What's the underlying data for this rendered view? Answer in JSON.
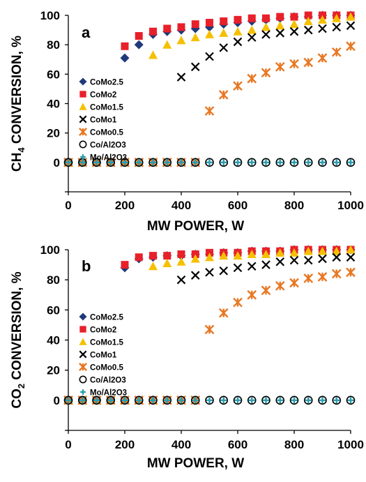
{
  "chart_data": [
    {
      "type": "scatter",
      "panel_label": "a",
      "xlabel": "MW POWER, W",
      "ylabel_parts": [
        "CH",
        "4",
        " CONVERSION, %"
      ],
      "xlim": [
        0,
        1000
      ],
      "ylim": [
        -20,
        100
      ],
      "xticks": [
        0,
        200,
        400,
        600,
        800,
        1000
      ],
      "yticks": [
        0,
        20,
        40,
        60,
        80,
        100
      ],
      "legend_position": "middle-left",
      "series": [
        {
          "name": "CoMo2.5",
          "marker": "diamond",
          "color": "#1f3a7a",
          "x": [
            0,
            50,
            100,
            150,
            200,
            250,
            300,
            350,
            400,
            450,
            500,
            550,
            600,
            650,
            700,
            750,
            800,
            850,
            900,
            950,
            1000
          ],
          "y": [
            0,
            0,
            0,
            0,
            71,
            80,
            87,
            89,
            90,
            91,
            92,
            94,
            95,
            96,
            97,
            98,
            99,
            99,
            100,
            100,
            100
          ]
        },
        {
          "name": "CoMo2",
          "marker": "square",
          "color": "#e8202a",
          "x": [
            200,
            250,
            300,
            350,
            400,
            450,
            500,
            550,
            600,
            650,
            700,
            750,
            800,
            850,
            900,
            950,
            1000
          ],
          "y": [
            79,
            86,
            89,
            91,
            92,
            94,
            95,
            96,
            97,
            98,
            98,
            99,
            99,
            100,
            100,
            100,
            100
          ]
        },
        {
          "name": "CoMo1.5",
          "marker": "triangle",
          "color": "#f5c000",
          "x": [
            0,
            50,
            100,
            150,
            200,
            250,
            300,
            350,
            400,
            450,
            500,
            550,
            600,
            650,
            700,
            750,
            800,
            850,
            900,
            950,
            1000
          ],
          "y": [
            0,
            0,
            0,
            0,
            0,
            0,
            73,
            80,
            83,
            85,
            87,
            88,
            89,
            90,
            92,
            93,
            94,
            96,
            97,
            98,
            99
          ]
        },
        {
          "name": "CoMo1",
          "marker": "x",
          "color": "#000000",
          "x": [
            0,
            50,
            100,
            150,
            200,
            250,
            300,
            350,
            400,
            450,
            500,
            550,
            600,
            650,
            700,
            750,
            800,
            850,
            900,
            950,
            1000
          ],
          "y": [
            0,
            0,
            0,
            0,
            0,
            0,
            0,
            0,
            58,
            65,
            72,
            78,
            82,
            85,
            87,
            88,
            89,
            90,
            91,
            92,
            93
          ]
        },
        {
          "name": "CoMo0.5",
          "marker": "asterisk",
          "color": "#e87722",
          "x": [
            0,
            50,
            100,
            150,
            200,
            250,
            300,
            350,
            400,
            450,
            500,
            550,
            600,
            650,
            700,
            750,
            800,
            850,
            900,
            950,
            1000
          ],
          "y": [
            0,
            0,
            0,
            0,
            0,
            0,
            0,
            0,
            0,
            0,
            35,
            46,
            52,
            57,
            61,
            65,
            67,
            68,
            71,
            75,
            79
          ]
        },
        {
          "name": "Co/Al2O3",
          "marker": "circle",
          "color": "#000000",
          "x": [
            0,
            50,
            100,
            150,
            200,
            250,
            300,
            350,
            400,
            450,
            500,
            550,
            600,
            650,
            700,
            750,
            800,
            850,
            900,
            950,
            1000
          ],
          "y": [
            0,
            0,
            0,
            0,
            0,
            0,
            0,
            0,
            0,
            0,
            0,
            0,
            0,
            0,
            0,
            0,
            0,
            0,
            0,
            0,
            0
          ]
        },
        {
          "name": "Mo/Al2O3",
          "marker": "plus",
          "color": "#2a9db0",
          "x": [
            0,
            50,
            100,
            150,
            200,
            250,
            300,
            350,
            400,
            450,
            500,
            550,
            600,
            650,
            700,
            750,
            800,
            850,
            900,
            950,
            1000
          ],
          "y": [
            0,
            0,
            0,
            0,
            0,
            0,
            0,
            0,
            0,
            0,
            0,
            0,
            0,
            0,
            0,
            0,
            0,
            0,
            0,
            0,
            0
          ]
        }
      ]
    },
    {
      "type": "scatter",
      "panel_label": "b",
      "xlabel": "MW POWER, W",
      "ylabel_parts": [
        "CO",
        "2",
        " CONVERSION, %"
      ],
      "xlim": [
        0,
        1000
      ],
      "ylim": [
        -20,
        100
      ],
      "xticks": [
        0,
        200,
        400,
        600,
        800,
        1000
      ],
      "yticks": [
        0,
        20,
        40,
        60,
        80,
        100
      ],
      "legend_position": "middle-left",
      "series": [
        {
          "name": "CoMo2.5",
          "marker": "diamond",
          "color": "#1f3a7a",
          "x": [
            0,
            50,
            100,
            150,
            200,
            250,
            300,
            350,
            400,
            450,
            500,
            550,
            600,
            650,
            700,
            750,
            800,
            850,
            900,
            950,
            1000
          ],
          "y": [
            0,
            0,
            0,
            0,
            88,
            94,
            95,
            96,
            96,
            97,
            97,
            98,
            98,
            99,
            99,
            99,
            100,
            100,
            100,
            100,
            100
          ]
        },
        {
          "name": "CoMo2",
          "marker": "square",
          "color": "#e8202a",
          "x": [
            200,
            250,
            300,
            350,
            400,
            450,
            500,
            550,
            600,
            650,
            700,
            750,
            800,
            850,
            900,
            950,
            1000
          ],
          "y": [
            90,
            95,
            96,
            96,
            97,
            97,
            98,
            98,
            98,
            99,
            99,
            99,
            100,
            100,
            100,
            100,
            100
          ]
        },
        {
          "name": "CoMo1.5",
          "marker": "triangle",
          "color": "#f5c000",
          "x": [
            0,
            50,
            100,
            150,
            200,
            250,
            300,
            350,
            400,
            450,
            500,
            550,
            600,
            650,
            700,
            750,
            800,
            850,
            900,
            950,
            1000
          ],
          "y": [
            0,
            0,
            0,
            0,
            0,
            0,
            89,
            91,
            92,
            94,
            95,
            96,
            96,
            97,
            97,
            98,
            98,
            99,
            99,
            99,
            100
          ]
        },
        {
          "name": "CoMo1",
          "marker": "x",
          "color": "#000000",
          "x": [
            0,
            50,
            100,
            150,
            200,
            250,
            300,
            350,
            400,
            450,
            500,
            550,
            600,
            650,
            700,
            750,
            800,
            850,
            900,
            950,
            1000
          ],
          "y": [
            0,
            0,
            0,
            0,
            0,
            0,
            0,
            0,
            80,
            83,
            85,
            86,
            88,
            89,
            90,
            92,
            93,
            93,
            94,
            95,
            95
          ]
        },
        {
          "name": "CoMo0.5",
          "marker": "asterisk",
          "color": "#e87722",
          "x": [
            0,
            50,
            100,
            150,
            200,
            250,
            300,
            350,
            400,
            450,
            500,
            550,
            600,
            650,
            700,
            750,
            800,
            850,
            900,
            950,
            1000
          ],
          "y": [
            0,
            0,
            0,
            0,
            0,
            0,
            0,
            0,
            0,
            0,
            47,
            58,
            65,
            70,
            73,
            76,
            78,
            81,
            82,
            84,
            85
          ]
        },
        {
          "name": "Co/Al2O3",
          "marker": "circle",
          "color": "#000000",
          "x": [
            0,
            50,
            100,
            150,
            200,
            250,
            300,
            350,
            400,
            450,
            500,
            550,
            600,
            650,
            700,
            750,
            800,
            850,
            900,
            950,
            1000
          ],
          "y": [
            0,
            0,
            0,
            0,
            0,
            0,
            0,
            0,
            0,
            0,
            0,
            0,
            0,
            0,
            0,
            0,
            0,
            0,
            0,
            0,
            0
          ]
        },
        {
          "name": "Mo/Al2O3",
          "marker": "plus",
          "color": "#2a9db0",
          "x": [
            0,
            50,
            100,
            150,
            200,
            250,
            300,
            350,
            400,
            450,
            500,
            550,
            600,
            650,
            700,
            750,
            800,
            850,
            900,
            950,
            1000
          ],
          "y": [
            0,
            0,
            0,
            0,
            0,
            0,
            0,
            0,
            0,
            0,
            0,
            0,
            0,
            0,
            0,
            0,
            0,
            0,
            0,
            0,
            0
          ]
        }
      ]
    }
  ]
}
